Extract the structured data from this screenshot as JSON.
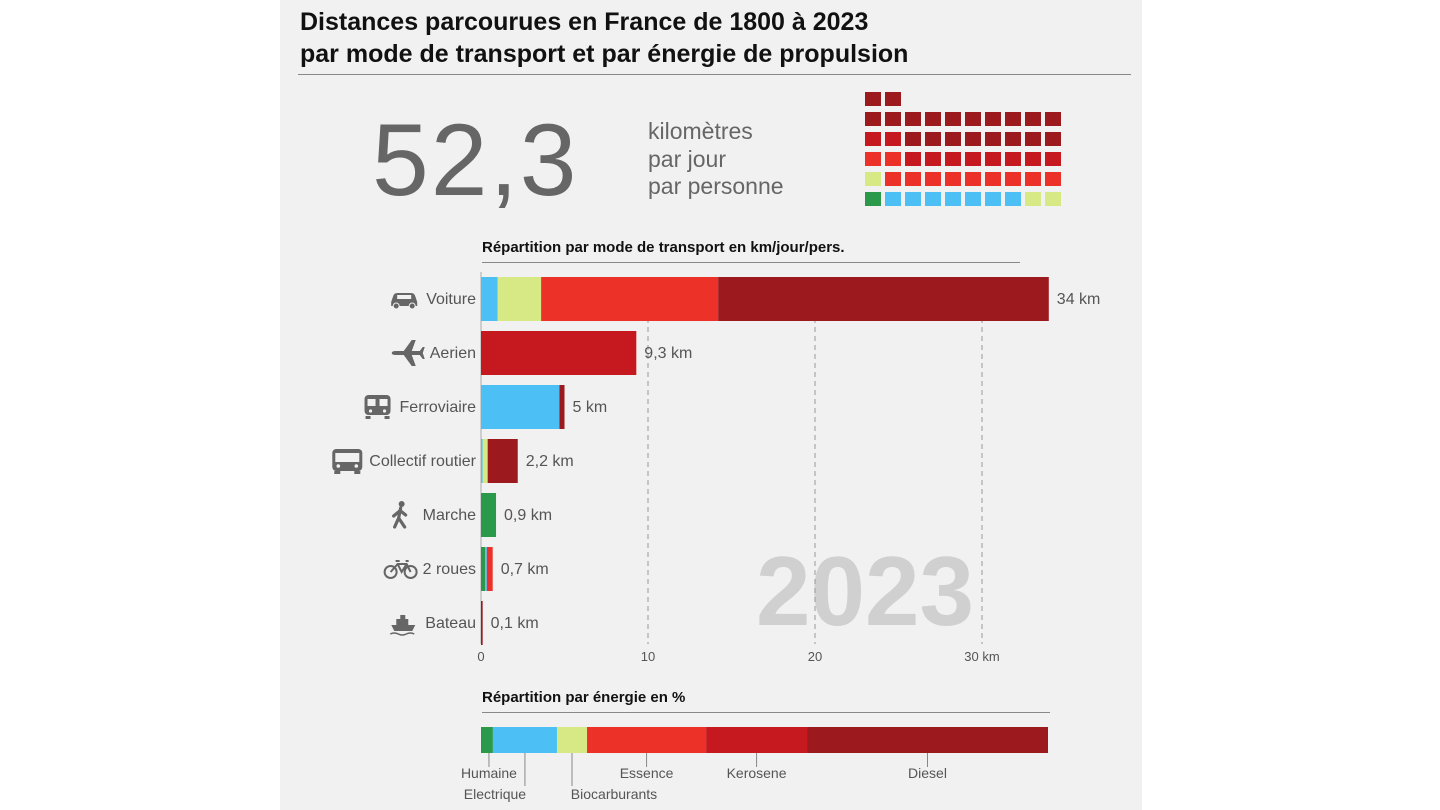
{
  "title": {
    "line1": "Distances parcourues en France de 1800 à 2023",
    "line2": "par mode de transport et par énergie de propulsion"
  },
  "headline": {
    "value": "52,3",
    "unit_line1": "kilomètres",
    "unit_line2": "par jour",
    "unit_line3": "par personne"
  },
  "year": "2023",
  "colors": {
    "humaine": "#2a9a4a",
    "electrique": "#4cc0f5",
    "biocarburants": "#d7e985",
    "essence": "#ec3129",
    "kerosene": "#c5181f",
    "diesel": "#9c1a1e"
  },
  "icons": {
    "Voiture": "car-icon",
    "Aerien": "airplane-icon",
    "Ferroviaire": "train-icon",
    "Collectif routier": "bus-icon",
    "Marche": "walking-person-icon",
    "2 roues": "bicycle-icon",
    "Bateau": "boat-icon"
  },
  "chart_data": [
    {
      "type": "waffle",
      "unit": "1 case ≈ 1 km",
      "cells": {
        "humaine": 1,
        "electrique": 7,
        "biocarburants": 3,
        "essence": 11,
        "kerosene": 10,
        "diesel": 20
      }
    },
    {
      "type": "bar",
      "stacked": true,
      "orientation": "horizontal",
      "title": "Répartition par mode de transport en km/jour/pers.",
      "categories": [
        "Voiture",
        "Aerien",
        "Ferroviaire",
        "Collectif routier",
        "Marche",
        "2 roues",
        "Bateau"
      ],
      "value_labels": [
        "34 km",
        "9,3 km",
        "5 km",
        "2,2 km",
        "0,9 km",
        "0,7 km",
        "0,1 km"
      ],
      "totals": [
        34,
        9.3,
        5,
        2.2,
        0.9,
        0.7,
        0.1
      ],
      "segments": [
        [
          {
            "energy": "electrique",
            "value": 1.0
          },
          {
            "energy": "biocarburants",
            "value": 2.6
          },
          {
            "energy": "essence",
            "value": 10.6
          },
          {
            "energy": "diesel",
            "value": 19.8
          }
        ],
        [
          {
            "energy": "kerosene",
            "value": 9.3
          }
        ],
        [
          {
            "energy": "electrique",
            "value": 4.7
          },
          {
            "energy": "diesel",
            "value": 0.3
          }
        ],
        [
          {
            "energy": "electrique",
            "value": 0.1
          },
          {
            "energy": "biocarburants",
            "value": 0.3
          },
          {
            "energy": "diesel",
            "value": 1.8
          }
        ],
        [
          {
            "energy": "humaine",
            "value": 0.9
          }
        ],
        [
          {
            "energy": "humaine",
            "value": 0.25
          },
          {
            "energy": "electrique",
            "value": 0.1
          },
          {
            "energy": "essence",
            "value": 0.35
          }
        ],
        [
          {
            "energy": "diesel",
            "value": 0.1
          }
        ]
      ],
      "xlim": [
        0,
        34
      ],
      "xticks": [
        {
          "value": 0,
          "label": "0"
        },
        {
          "value": 10,
          "label": "10"
        },
        {
          "value": 20,
          "label": "20"
        },
        {
          "value": 30,
          "label": "30 km"
        }
      ],
      "grid": "dashed vertical at 10, 20, 30"
    },
    {
      "type": "bar",
      "stacked": true,
      "orientation": "horizontal",
      "title": "Répartition par énergie en %",
      "segments": [
        {
          "energy": "humaine",
          "label": "Humaine",
          "value": 2.1
        },
        {
          "energy": "electrique",
          "label": "Electrique",
          "value": 11.3
        },
        {
          "energy": "biocarburants",
          "label": "Biocarburants",
          "value": 5.3
        },
        {
          "energy": "essence",
          "label": "Essence",
          "value": 21.0
        },
        {
          "energy": "kerosene",
          "label": "Kerosene",
          "value": 17.8
        },
        {
          "energy": "diesel",
          "label": "Diesel",
          "value": 42.5
        }
      ]
    }
  ]
}
